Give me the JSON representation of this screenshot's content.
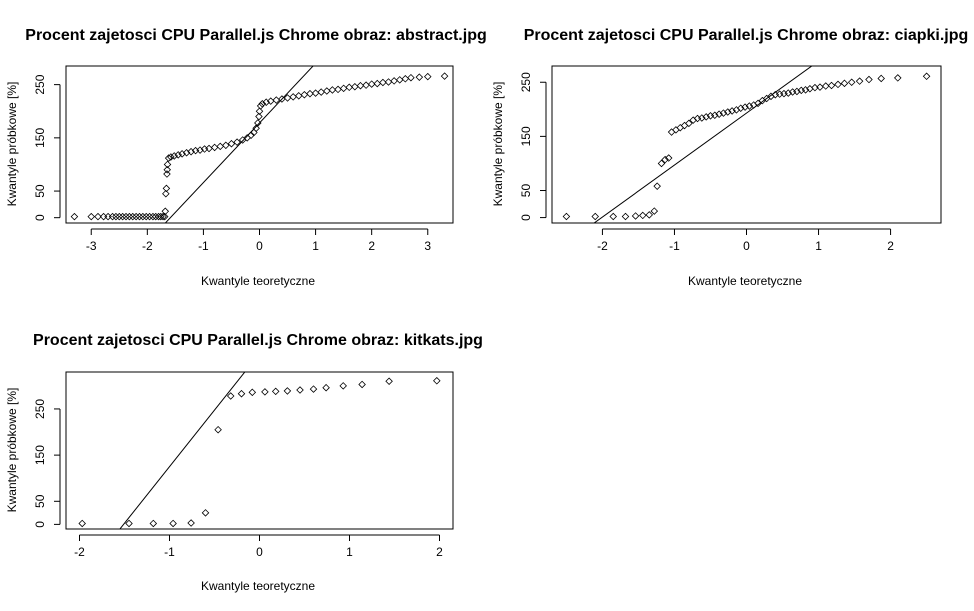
{
  "chart_data": [
    {
      "type": "scatter",
      "title": "Procent zajetosci CPU Parallel.js Chrome obraz:  abstract.jpg",
      "xlabel": "Kwantyle teoretyczne",
      "ylabel": "Kwantyle próbkowe [%]",
      "xlim": [
        -3.45,
        3.45
      ],
      "ylim": [
        -10,
        285
      ],
      "xticks": [
        -3,
        -2,
        -1,
        0,
        1,
        2,
        3
      ],
      "yticks": [
        0,
        50,
        150,
        250
      ],
      "qqline": {
        "slope": 112,
        "intercept": 178
      },
      "points": [
        [
          -3.3,
          2
        ],
        [
          -3.0,
          2
        ],
        [
          -2.88,
          2
        ],
        [
          -2.78,
          2
        ],
        [
          -2.7,
          2
        ],
        [
          -2.62,
          2
        ],
        [
          -2.56,
          2
        ],
        [
          -2.5,
          2
        ],
        [
          -2.44,
          2
        ],
        [
          -2.38,
          2
        ],
        [
          -2.32,
          2
        ],
        [
          -2.26,
          2
        ],
        [
          -2.2,
          2
        ],
        [
          -2.14,
          2
        ],
        [
          -2.08,
          2
        ],
        [
          -2.02,
          2
        ],
        [
          -1.96,
          2
        ],
        [
          -1.9,
          2
        ],
        [
          -1.85,
          2
        ],
        [
          -1.8,
          2
        ],
        [
          -1.76,
          2
        ],
        [
          -1.72,
          2
        ],
        [
          -1.69,
          2
        ],
        [
          -1.68,
          12
        ],
        [
          -1.67,
          45
        ],
        [
          -1.66,
          55
        ],
        [
          -1.65,
          82
        ],
        [
          -1.645,
          90
        ],
        [
          -1.64,
          100
        ],
        [
          -1.62,
          112
        ],
        [
          -1.58,
          114
        ],
        [
          -1.52,
          116
        ],
        [
          -1.45,
          118
        ],
        [
          -1.38,
          120
        ],
        [
          -1.3,
          122
        ],
        [
          -1.22,
          124
        ],
        [
          -1.14,
          126
        ],
        [
          -1.06,
          127
        ],
        [
          -0.98,
          129
        ],
        [
          -0.9,
          130
        ],
        [
          -0.8,
          132
        ],
        [
          -0.7,
          134
        ],
        [
          -0.6,
          136
        ],
        [
          -0.5,
          139
        ],
        [
          -0.4,
          142
        ],
        [
          -0.3,
          146
        ],
        [
          -0.22,
          150
        ],
        [
          -0.15,
          155
        ],
        [
          -0.1,
          160
        ],
        [
          -0.06,
          168
        ],
        [
          -0.03,
          178
        ],
        [
          -0.01,
          190
        ],
        [
          0.0,
          200
        ],
        [
          0.02,
          210
        ],
        [
          0.05,
          214
        ],
        [
          0.12,
          217
        ],
        [
          0.2,
          219
        ],
        [
          0.3,
          221
        ],
        [
          0.4,
          223
        ],
        [
          0.5,
          225
        ],
        [
          0.6,
          227
        ],
        [
          0.7,
          229
        ],
        [
          0.8,
          231
        ],
        [
          0.9,
          233
        ],
        [
          1.0,
          234
        ],
        [
          1.1,
          236
        ],
        [
          1.2,
          238
        ],
        [
          1.3,
          240
        ],
        [
          1.4,
          241
        ],
        [
          1.5,
          243
        ],
        [
          1.6,
          245
        ],
        [
          1.7,
          246
        ],
        [
          1.8,
          248
        ],
        [
          1.9,
          249
        ],
        [
          2.0,
          251
        ],
        [
          2.1,
          252
        ],
        [
          2.2,
          254
        ],
        [
          2.3,
          255
        ],
        [
          2.4,
          257
        ],
        [
          2.5,
          259
        ],
        [
          2.6,
          261
        ],
        [
          2.7,
          263
        ],
        [
          2.85,
          264
        ],
        [
          3.0,
          265
        ],
        [
          3.3,
          266
        ]
      ]
    },
    {
      "type": "scatter",
      "title": "Procent zajetosci CPU Parallel.js Chrome obraz:  ciapki.jpg",
      "xlabel": "Kwantyle teoretyczne",
      "ylabel": "Kwantyle próbkowe [%]",
      "xlim": [
        -2.7,
        2.7
      ],
      "ylim": [
        -10,
        280
      ],
      "xticks": [
        -2,
        -1,
        0,
        1,
        2
      ],
      "yticks": [
        0,
        50,
        150,
        250
      ],
      "qqline": {
        "slope": 96,
        "intercept": 193
      },
      "points": [
        [
          -2.5,
          2
        ],
        [
          -2.1,
          2
        ],
        [
          -1.85,
          2
        ],
        [
          -1.68,
          2
        ],
        [
          -1.54,
          3
        ],
        [
          -1.44,
          4
        ],
        [
          -1.35,
          5
        ],
        [
          -1.28,
          12
        ],
        [
          -1.24,
          58
        ],
        [
          -1.18,
          100
        ],
        [
          -1.13,
          107
        ],
        [
          -1.08,
          110
        ],
        [
          -1.04,
          158
        ],
        [
          -0.98,
          162
        ],
        [
          -0.92,
          166
        ],
        [
          -0.86,
          170
        ],
        [
          -0.8,
          174
        ],
        [
          -0.74,
          180
        ],
        [
          -0.68,
          183
        ],
        [
          -0.62,
          184
        ],
        [
          -0.56,
          186
        ],
        [
          -0.5,
          188
        ],
        [
          -0.44,
          189
        ],
        [
          -0.38,
          191
        ],
        [
          -0.32,
          193
        ],
        [
          -0.26,
          195
        ],
        [
          -0.2,
          197
        ],
        [
          -0.14,
          199
        ],
        [
          -0.08,
          202
        ],
        [
          -0.02,
          204
        ],
        [
          0.04,
          206
        ],
        [
          0.1,
          208
        ],
        [
          0.16,
          211
        ],
        [
          0.22,
          216
        ],
        [
          0.28,
          220
        ],
        [
          0.34,
          224
        ],
        [
          0.4,
          227
        ],
        [
          0.46,
          228
        ],
        [
          0.52,
          229
        ],
        [
          0.58,
          230
        ],
        [
          0.64,
          232
        ],
        [
          0.7,
          233
        ],
        [
          0.76,
          235
        ],
        [
          0.82,
          236
        ],
        [
          0.88,
          238
        ],
        [
          0.95,
          240
        ],
        [
          1.02,
          241
        ],
        [
          1.1,
          243
        ],
        [
          1.18,
          244
        ],
        [
          1.27,
          246
        ],
        [
          1.36,
          248
        ],
        [
          1.46,
          250
        ],
        [
          1.57,
          252
        ],
        [
          1.7,
          255
        ],
        [
          1.87,
          257
        ],
        [
          2.1,
          258
        ],
        [
          2.5,
          261
        ]
      ]
    },
    {
      "type": "scatter",
      "title": "Procent zajetosci CPU Parallel.js Chrome obraz:  kitkats.jpg",
      "xlabel": "Kwantyle teoretyczne",
      "ylabel": "Kwantyle próbkowe [%]",
      "xlim": [
        -2.15,
        2.15
      ],
      "ylim": [
        -10,
        330
      ],
      "xticks": [
        -2,
        -1,
        0,
        1,
        2
      ],
      "yticks": [
        0,
        50,
        150,
        250
      ],
      "qqline": {
        "slope": 245,
        "intercept": 370
      },
      "points": [
        [
          -1.97,
          2
        ],
        [
          -1.45,
          2
        ],
        [
          -1.18,
          2
        ],
        [
          -0.96,
          2
        ],
        [
          -0.76,
          3
        ],
        [
          -0.6,
          25
        ],
        [
          -0.46,
          205
        ],
        [
          -0.32,
          278
        ],
        [
          -0.2,
          283
        ],
        [
          -0.08,
          286
        ],
        [
          0.06,
          287
        ],
        [
          0.18,
          288
        ],
        [
          0.31,
          289
        ],
        [
          0.45,
          291
        ],
        [
          0.6,
          293
        ],
        [
          0.74,
          296
        ],
        [
          0.93,
          300
        ],
        [
          1.14,
          303
        ],
        [
          1.44,
          310
        ],
        [
          1.97,
          311
        ]
      ]
    }
  ]
}
